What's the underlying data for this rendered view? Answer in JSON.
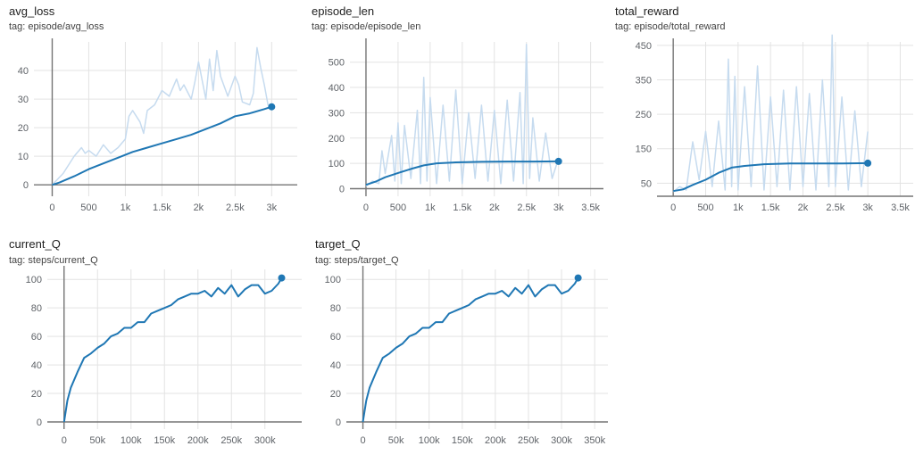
{
  "colors": {
    "series": "#1f77b4",
    "raw": "#c6dbef",
    "grid": "#e3e3e3",
    "axis": "#757575",
    "tick": "#5f6368"
  },
  "chart_data": [
    {
      "id": "avg-loss",
      "type": "line",
      "title": "avg_loss",
      "tag": "tag: episode/avg_loss",
      "xlim": [
        -250,
        3350
      ],
      "ylim": [
        -4,
        50
      ],
      "xticks": [
        0,
        500,
        1000,
        1500,
        2000,
        2500,
        3000
      ],
      "xtick_labels": [
        "0",
        "500",
        "1k",
        "1.5k",
        "2k",
        "2.5k",
        "3k"
      ],
      "yticks": [
        0,
        10,
        20,
        30,
        40
      ],
      "ytick_labels": [
        "0",
        "10",
        "20",
        "30",
        "40"
      ],
      "grid": true,
      "series": [
        {
          "role": "raw",
          "x": [
            0,
            150,
            300,
            400,
            450,
            500,
            600,
            700,
            800,
            900,
            1000,
            1050,
            1100,
            1200,
            1250,
            1300,
            1400,
            1500,
            1600,
            1700,
            1750,
            1800,
            1900,
            1950,
            2000,
            2100,
            2150,
            2200,
            2250,
            2300,
            2400,
            2500,
            2550,
            2600,
            2700,
            2750,
            2800,
            2850,
            2900,
            2950,
            3000
          ],
          "y": [
            0,
            4,
            10,
            13,
            11,
            12,
            10,
            14,
            11,
            13,
            16,
            24,
            26,
            22,
            18,
            26,
            28,
            33,
            31,
            37,
            33,
            35,
            30,
            36,
            43,
            30,
            44,
            33,
            47,
            38,
            31,
            38,
            35,
            29,
            28,
            32,
            48,
            41,
            35,
            28,
            27
          ]
        },
        {
          "role": "smoothed",
          "x": [
            0,
            100,
            300,
            500,
            700,
            900,
            1100,
            1300,
            1500,
            1700,
            1900,
            2100,
            2300,
            2500,
            2700,
            2900,
            3000
          ],
          "y": [
            0,
            0.8,
            3,
            5.5,
            7.5,
            9.5,
            11.5,
            13,
            14.5,
            16,
            17.5,
            19.5,
            21.5,
            24,
            25,
            26.5,
            27.3
          ]
        }
      ]
    },
    {
      "id": "episode-len",
      "type": "line",
      "title": "episode_len",
      "tag": "tag: episode/episode_len",
      "xlim": [
        -250,
        3700
      ],
      "ylim": [
        -30,
        580
      ],
      "xticks": [
        0,
        500,
        1000,
        1500,
        2000,
        2500,
        3000,
        3500
      ],
      "xtick_labels": [
        "0",
        "500",
        "1k",
        "1.5k",
        "2k",
        "2.5k",
        "3k",
        "3.5k"
      ],
      "yticks": [
        0,
        100,
        200,
        300,
        400,
        500
      ],
      "ytick_labels": [
        "0",
        "100",
        "200",
        "300",
        "400",
        "500"
      ],
      "grid": true,
      "series": [
        {
          "role": "raw",
          "x": [
            0,
            100,
            200,
            250,
            300,
            400,
            450,
            500,
            550,
            600,
            700,
            800,
            850,
            900,
            950,
            1000,
            1100,
            1200,
            1300,
            1400,
            1500,
            1600,
            1700,
            1800,
            1900,
            2000,
            2100,
            2200,
            2300,
            2400,
            2450,
            2500,
            2550,
            2600,
            2700,
            2800,
            2900,
            3000
          ],
          "y": [
            10,
            30,
            20,
            150,
            60,
            210,
            30,
            260,
            20,
            250,
            40,
            310,
            20,
            440,
            30,
            360,
            20,
            330,
            30,
            390,
            20,
            300,
            40,
            330,
            30,
            310,
            20,
            350,
            30,
            380,
            20,
            570,
            40,
            280,
            30,
            220,
            40,
            120
          ]
        },
        {
          "role": "smoothed",
          "x": [
            0,
            150,
            300,
            500,
            700,
            900,
            1100,
            1400,
            1800,
            2200,
            2600,
            3000
          ],
          "y": [
            15,
            28,
            45,
            62,
            78,
            92,
            100,
            104,
            106,
            107,
            107,
            108
          ]
        }
      ]
    },
    {
      "id": "total-reward",
      "type": "line",
      "title": "total_reward",
      "tag": "tag: episode/total_reward",
      "xlim": [
        -250,
        3700
      ],
      "ylim": [
        12,
        460
      ],
      "xticks": [
        0,
        500,
        1000,
        1500,
        2000,
        2500,
        3000,
        3500
      ],
      "xtick_labels": [
        "0",
        "500",
        "1k",
        "1.5k",
        "2k",
        "2.5k",
        "3k",
        "3.5k"
      ],
      "yticks": [
        50,
        150,
        250,
        350,
        450
      ],
      "ytick_labels": [
        "50",
        "150",
        "250",
        "350",
        "450"
      ],
      "grid": true,
      "series": [
        {
          "role": "raw",
          "x": [
            0,
            100,
            200,
            300,
            400,
            500,
            600,
            700,
            800,
            850,
            900,
            950,
            1000,
            1100,
            1200,
            1300,
            1400,
            1500,
            1600,
            1700,
            1800,
            1900,
            2000,
            2100,
            2200,
            2300,
            2400,
            2450,
            2500,
            2600,
            2700,
            2800,
            2900,
            3000
          ],
          "y": [
            25,
            40,
            30,
            170,
            60,
            200,
            40,
            230,
            30,
            410,
            40,
            360,
            30,
            330,
            40,
            390,
            30,
            300,
            40,
            320,
            30,
            330,
            40,
            310,
            30,
            350,
            40,
            480,
            40,
            300,
            30,
            260,
            40,
            200
          ]
        },
        {
          "role": "smoothed",
          "x": [
            0,
            150,
            300,
            500,
            700,
            900,
            1100,
            1400,
            1800,
            2200,
            2600,
            3000
          ],
          "y": [
            27,
            32,
            45,
            60,
            80,
            95,
            100,
            105,
            107,
            107,
            107,
            108
          ]
        }
      ]
    },
    {
      "id": "current-q",
      "type": "line",
      "title": "current_Q",
      "tag": "tag: steps/current_Q",
      "xlim": [
        -25000,
        355000
      ],
      "ylim": [
        -5,
        107
      ],
      "xticks": [
        0,
        50000,
        100000,
        150000,
        200000,
        250000,
        300000
      ],
      "xtick_labels": [
        "0",
        "50k",
        "100k",
        "150k",
        "200k",
        "250k",
        "300k"
      ],
      "yticks": [
        0,
        20,
        40,
        60,
        80,
        100
      ],
      "ytick_labels": [
        "0",
        "20",
        "40",
        "60",
        "80",
        "100"
      ],
      "grid": true,
      "series": [
        {
          "role": "smoothed",
          "x": [
            0,
            5000,
            10000,
            20000,
            30000,
            40000,
            50000,
            60000,
            70000,
            80000,
            90000,
            100000,
            110000,
            120000,
            130000,
            140000,
            150000,
            160000,
            170000,
            180000,
            190000,
            200000,
            210000,
            220000,
            230000,
            240000,
            250000,
            260000,
            270000,
            280000,
            290000,
            300000,
            310000,
            320000,
            325000
          ],
          "y": [
            0,
            15,
            24,
            35,
            45,
            48,
            52,
            55,
            60,
            62,
            66,
            66,
            70,
            70,
            76,
            78,
            80,
            82,
            86,
            88,
            90,
            90,
            92,
            88,
            94,
            90,
            96,
            88,
            93,
            96,
            96,
            90,
            92,
            97,
            101
          ]
        }
      ]
    },
    {
      "id": "target-q",
      "type": "line",
      "title": "target_Q",
      "tag": "tag: steps/target_Q",
      "xlim": [
        -25000,
        370000
      ],
      "ylim": [
        -5,
        107
      ],
      "xticks": [
        0,
        50000,
        100000,
        150000,
        200000,
        250000,
        300000,
        350000
      ],
      "xtick_labels": [
        "0",
        "50k",
        "100k",
        "150k",
        "200k",
        "250k",
        "300k",
        "350k"
      ],
      "yticks": [
        0,
        20,
        40,
        60,
        80,
        100
      ],
      "ytick_labels": [
        "0",
        "20",
        "40",
        "60",
        "80",
        "100"
      ],
      "grid": true,
      "series": [
        {
          "role": "smoothed",
          "x": [
            0,
            5000,
            10000,
            20000,
            30000,
            40000,
            50000,
            60000,
            70000,
            80000,
            90000,
            100000,
            110000,
            120000,
            130000,
            140000,
            150000,
            160000,
            170000,
            180000,
            190000,
            200000,
            210000,
            220000,
            230000,
            240000,
            250000,
            260000,
            270000,
            280000,
            290000,
            300000,
            310000,
            320000,
            325000
          ],
          "y": [
            0,
            15,
            24,
            35,
            45,
            48,
            52,
            55,
            60,
            62,
            66,
            66,
            70,
            70,
            76,
            78,
            80,
            82,
            86,
            88,
            90,
            90,
            92,
            88,
            94,
            90,
            96,
            88,
            93,
            96,
            96,
            90,
            92,
            97,
            101
          ]
        }
      ]
    }
  ]
}
